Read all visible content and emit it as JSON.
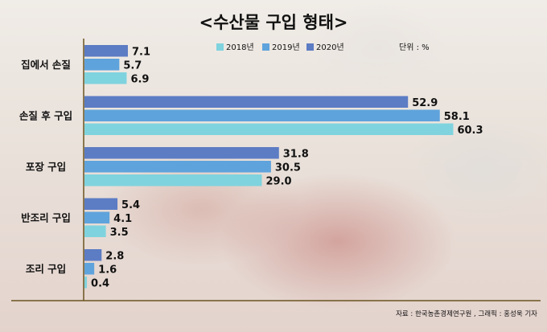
{
  "chart_data": {
    "type": "bar",
    "orientation": "horizontal",
    "title": "<수산물 구입 형태>",
    "unit_note": "단위 : %",
    "source": "자료 : 한국농촌경제연구원 , 그래픽 : 홍성욱 기자",
    "categories": [
      "집에서 손질",
      "손질 후 구입",
      "포장 구입",
      "반조리 구입",
      "조리 구입"
    ],
    "series": [
      {
        "name": "2020년",
        "color": "#5c7cc4",
        "values": [
          7.1,
          52.9,
          31.8,
          5.4,
          2.8
        ]
      },
      {
        "name": "2019년",
        "color": "#5fa3dc",
        "values": [
          5.7,
          58.1,
          30.5,
          4.1,
          1.6
        ]
      },
      {
        "name": "2018년",
        "color": "#7fd3de",
        "values": [
          6.9,
          60.3,
          29.0,
          3.5,
          0.4
        ]
      }
    ],
    "legend": {
      "position": "top-center",
      "order": [
        "2018년",
        "2019년",
        "2020년"
      ]
    },
    "xlim": [
      0,
      63
    ],
    "grid": false,
    "axis_color": "#6b5420"
  }
}
